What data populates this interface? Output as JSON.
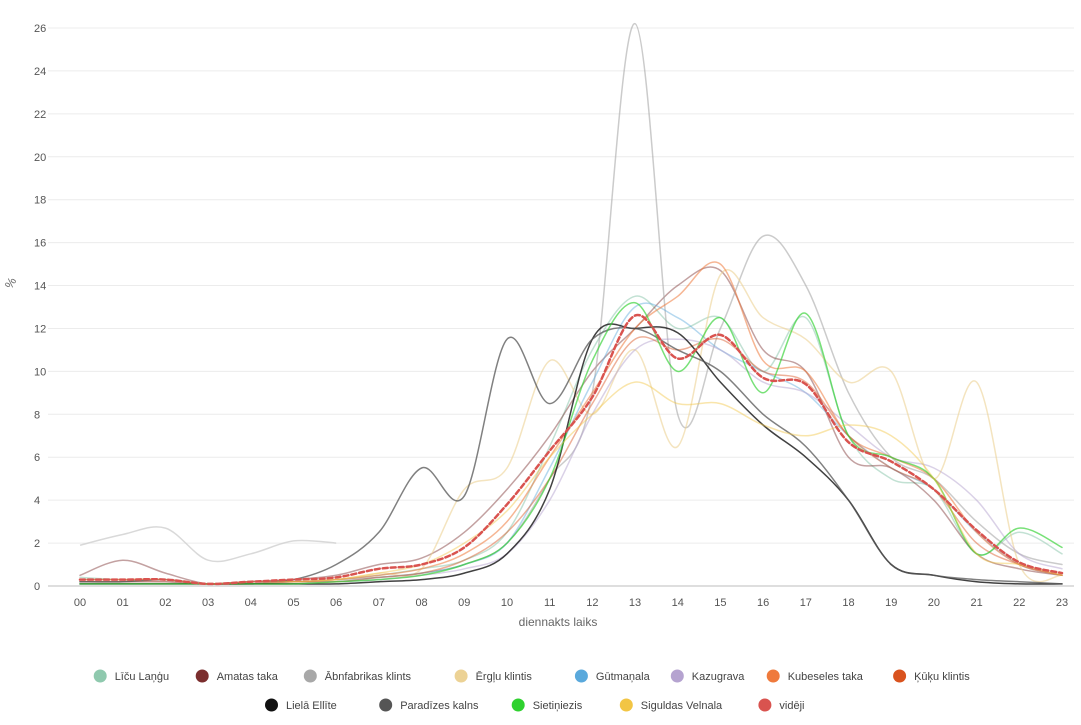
{
  "chart_data": {
    "type": "line",
    "xlabel": "diennakts laiks",
    "ylabel": "%",
    "ylim": [
      0,
      26
    ],
    "yticks": [
      0,
      2,
      4,
      6,
      8,
      10,
      12,
      14,
      16,
      18,
      20,
      22,
      24,
      26
    ],
    "categories": [
      "00",
      "01",
      "02",
      "03",
      "04",
      "05",
      "06",
      "07",
      "08",
      "09",
      "10",
      "11",
      "12",
      "13",
      "14",
      "15",
      "16",
      "17",
      "18",
      "19",
      "20",
      "21",
      "22",
      "23"
    ],
    "grid": "horizontal",
    "legend_position": "bottom",
    "series": [
      {
        "name": "Līču Laņģu",
        "color": "#8fc9ae",
        "width": 1.5,
        "opacity": 0.55,
        "values": [
          0.4,
          0.3,
          0.3,
          0.1,
          0.2,
          0.2,
          0.3,
          0.5,
          0.8,
          1.2,
          2.5,
          6.5,
          11.0,
          13.5,
          12.0,
          12.5,
          10.0,
          12.5,
          7.0,
          5.0,
          4.5,
          1.5,
          2.5,
          1.5
        ]
      },
      {
        "name": "Amatas taka",
        "color": "#7b2e2e",
        "width": 1.5,
        "opacity": 0.45,
        "values": [
          0.5,
          1.2,
          0.6,
          0.1,
          0.2,
          0.3,
          0.5,
          1.0,
          1.3,
          2.5,
          4.5,
          7.0,
          10.0,
          12.0,
          14.0,
          14.7,
          11.0,
          10.0,
          6.0,
          5.5,
          4.0,
          1.5,
          0.8,
          0.5
        ]
      },
      {
        "name": "Ābnfabrikas klints",
        "color": "#a8a8a8",
        "width": 1.5,
        "opacity": 0.6,
        "values": [
          0.3,
          0.3,
          0.3,
          0.1,
          0.2,
          0.2,
          0.3,
          0.4,
          0.6,
          1.0,
          2.0,
          5.0,
          9.0,
          26.2,
          8.0,
          12.0,
          16.3,
          14.0,
          9.0,
          6.0,
          5.0,
          3.0,
          1.5,
          1.0
        ]
      },
      {
        "name": "Ērgļu klintis",
        "color": "#ecd295",
        "width": 1.5,
        "opacity": 0.6,
        "values": [
          0.2,
          0.2,
          0.3,
          0.1,
          0.2,
          0.2,
          0.3,
          0.6,
          0.8,
          4.5,
          5.5,
          10.5,
          8.0,
          11.0,
          6.5,
          14.5,
          12.5,
          11.5,
          9.5,
          10.0,
          5.0,
          9.5,
          1.0,
          0.5
        ]
      },
      {
        "name": "Gūtmaņala",
        "color": "#5aa9dc",
        "width": 1.5,
        "opacity": 0.45,
        "values": [
          0.2,
          0.2,
          0.2,
          0.1,
          0.1,
          0.2,
          0.2,
          0.4,
          0.6,
          1.0,
          2.0,
          5.5,
          9.5,
          13.0,
          12.5,
          11.0,
          10.0,
          9.0,
          7.0,
          5.5,
          4.5,
          2.5,
          1.0,
          0.5
        ]
      },
      {
        "name": "Kazugrava",
        "color": "#b5a3d0",
        "width": 1.5,
        "opacity": 0.5,
        "values": [
          0.2,
          0.2,
          0.2,
          0.1,
          0.1,
          0.2,
          0.2,
          0.3,
          0.5,
          0.8,
          1.5,
          4.0,
          8.0,
          11.0,
          11.5,
          11.0,
          9.5,
          9.0,
          7.5,
          6.0,
          5.5,
          4.0,
          1.5,
          0.8
        ]
      },
      {
        "name": "Kubeseles taka",
        "color": "#ef7a3c",
        "width": 1.5,
        "opacity": 0.55,
        "values": [
          0.3,
          0.3,
          0.3,
          0.1,
          0.2,
          0.2,
          0.3,
          0.5,
          0.8,
          1.5,
          3.0,
          6.0,
          9.0,
          12.0,
          13.5,
          15.0,
          10.5,
          10.0,
          7.0,
          6.0,
          5.0,
          2.5,
          1.0,
          0.5
        ]
      },
      {
        "name": "Ķūķu klintis",
        "color": "#d9531e",
        "width": 1.5,
        "opacity": 0.45,
        "values": [
          0.2,
          0.2,
          0.2,
          0.1,
          0.1,
          0.2,
          0.2,
          0.4,
          0.6,
          1.2,
          2.5,
          5.0,
          8.5,
          11.5,
          11.0,
          11.5,
          10.0,
          9.5,
          7.0,
          5.5,
          4.5,
          2.0,
          1.0,
          0.5
        ]
      },
      {
        "name": "Lielā Ellīte",
        "color": "#111111",
        "width": 1.5,
        "opacity": 0.8,
        "values": [
          0.1,
          0.1,
          0.1,
          0.1,
          0.1,
          0.1,
          0.1,
          0.2,
          0.3,
          0.6,
          1.5,
          4.5,
          11.5,
          12.0,
          11.8,
          9.5,
          7.5,
          6.0,
          4.0,
          1.0,
          0.5,
          0.2,
          0.1,
          0.1
        ]
      },
      {
        "name": "Paradīzes kalns",
        "color": "#555555",
        "width": 1.5,
        "opacity": 0.75,
        "values": [
          0.2,
          0.2,
          0.3,
          0.1,
          0.2,
          0.3,
          1.0,
          2.5,
          5.5,
          4.2,
          11.5,
          8.5,
          11.5,
          12.0,
          11.0,
          10.0,
          8.0,
          6.5,
          4.0,
          1.0,
          0.5,
          0.3,
          0.2,
          0.1
        ]
      },
      {
        "name": "Sietiņiezis",
        "color": "#2fd12f",
        "width": 1.5,
        "opacity": 0.65,
        "values": [
          0.1,
          0.1,
          0.1,
          0.1,
          0.1,
          0.1,
          0.2,
          0.3,
          0.5,
          1.0,
          2.0,
          5.0,
          10.5,
          13.2,
          10.0,
          12.5,
          9.0,
          12.7,
          7.0,
          6.0,
          5.0,
          1.5,
          2.7,
          1.8
        ]
      },
      {
        "name": "Siguldas Velnala",
        "color": "#f2c544",
        "width": 1.5,
        "opacity": 0.45,
        "values": [
          0.3,
          0.3,
          0.3,
          0.1,
          0.2,
          0.2,
          0.3,
          0.6,
          1.0,
          2.0,
          3.5,
          6.0,
          8.0,
          9.5,
          8.5,
          8.5,
          7.5,
          7.0,
          7.5,
          7.0,
          5.0,
          1.5,
          1.0,
          0.5
        ]
      },
      {
        "name": "vidēji",
        "color": "#d9534f",
        "width": 2.5,
        "opacity": 1.0,
        "dashed": true,
        "values": [
          0.3,
          0.3,
          0.3,
          0.1,
          0.2,
          0.3,
          0.4,
          0.8,
          1.0,
          1.8,
          3.8,
          6.3,
          8.8,
          12.6,
          10.6,
          11.7,
          9.7,
          9.4,
          6.7,
          5.8,
          4.5,
          2.6,
          1.1,
          0.6
        ]
      }
    ],
    "ghost_series": [
      {
        "color": "#cfcfcf",
        "values": [
          1.9,
          2.4,
          2.7,
          1.2,
          1.5,
          2.1,
          2.0,
          null,
          null,
          null,
          null,
          null,
          null,
          null,
          null,
          null,
          null,
          null,
          null,
          null,
          null,
          null,
          null,
          null
        ]
      }
    ]
  }
}
